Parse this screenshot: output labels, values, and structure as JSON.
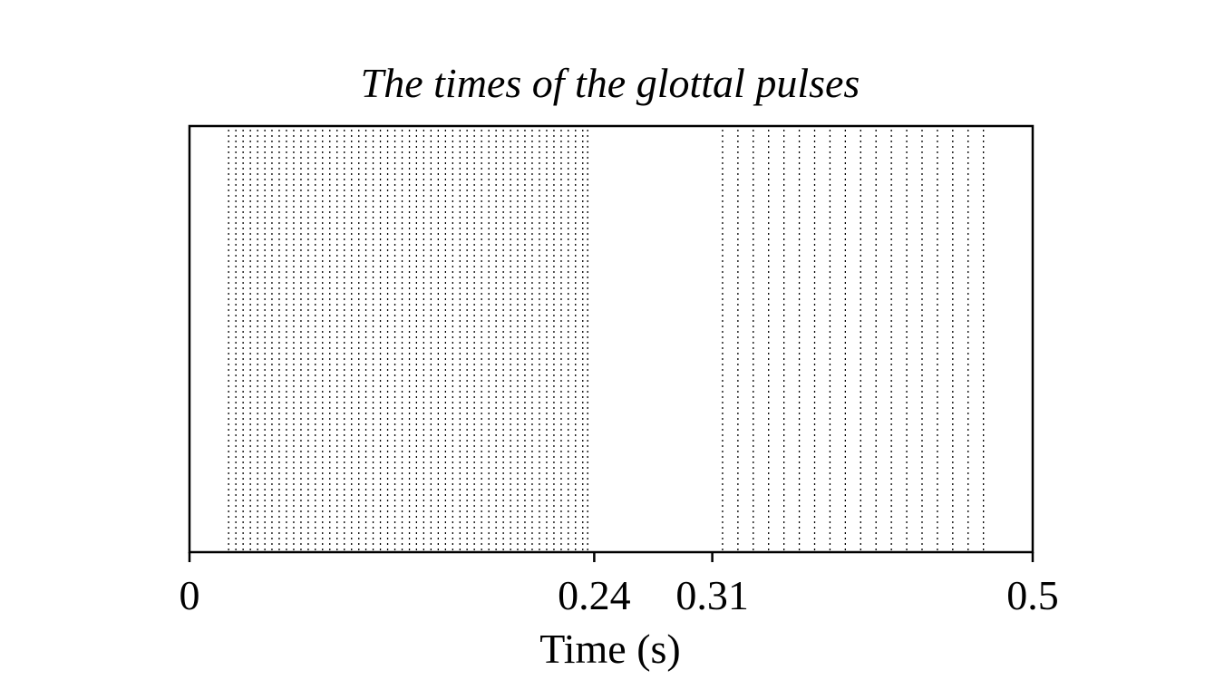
{
  "chart_data": {
    "type": "event-raster",
    "title": "The times of the glottal pulses",
    "xlabel": "Time (s)",
    "ylabel": "",
    "xlim": [
      0,
      0.5
    ],
    "xticks": [
      {
        "value": 0,
        "label": "0"
      },
      {
        "value": 0.24,
        "label": "0.24"
      },
      {
        "value": 0.31,
        "label": "0.31"
      },
      {
        "value": 0.5,
        "label": "0.5"
      }
    ],
    "grid": false,
    "legend": "none",
    "line_color": "#000000",
    "line_style": "dotted",
    "pulse_times": [
      0.0232,
      0.0275,
      0.0318,
      0.0361,
      0.0404,
      0.0447,
      0.0489,
      0.0532,
      0.0575,
      0.0618,
      0.0661,
      0.0704,
      0.0746,
      0.0789,
      0.0832,
      0.0875,
      0.0918,
      0.0961,
      0.1004,
      0.1046,
      0.1089,
      0.1132,
      0.1175,
      0.1218,
      0.1261,
      0.1304,
      0.1346,
      0.1389,
      0.1432,
      0.1475,
      0.1518,
      0.1561,
      0.1604,
      0.1646,
      0.1689,
      0.1732,
      0.1775,
      0.1818,
      0.1861,
      0.1904,
      0.1946,
      0.1989,
      0.2032,
      0.2075,
      0.2118,
      0.2161,
      0.2204,
      0.2246,
      0.2289,
      0.2332,
      0.2361,
      0.3161,
      0.3252,
      0.3343,
      0.3434,
      0.3525,
      0.3616,
      0.3707,
      0.3798,
      0.3889,
      0.398,
      0.4071,
      0.4162,
      0.4253,
      0.4344,
      0.4435,
      0.4526,
      0.4617,
      0.4708
    ]
  }
}
